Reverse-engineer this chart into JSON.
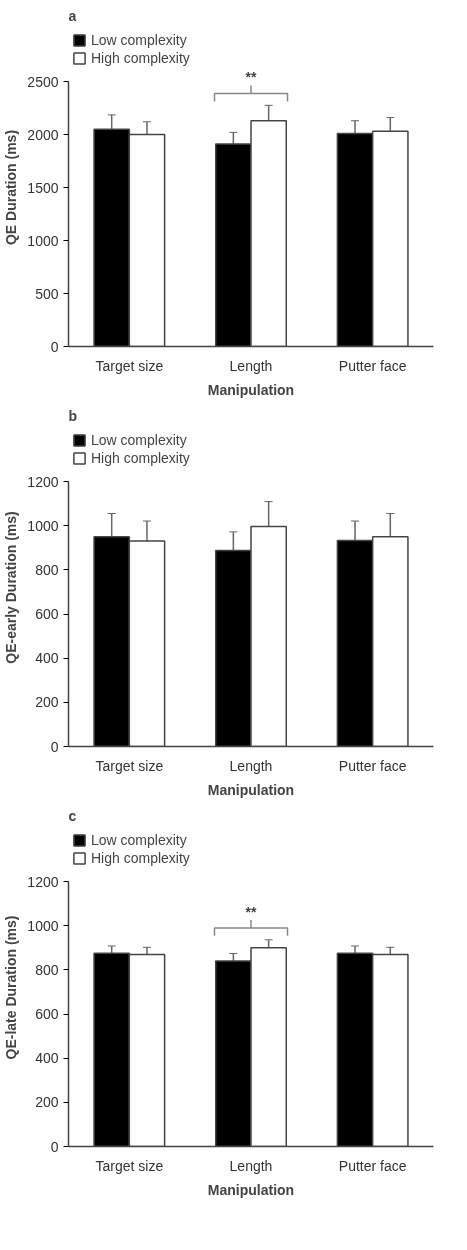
{
  "chart_data": [
    {
      "type": "bar",
      "title": "a",
      "xlabel": "Manipulation",
      "ylabel": "QE Duration (ms)",
      "categories": [
        "Target size",
        "Length",
        "Putter face"
      ],
      "ylim": [
        0,
        2500
      ],
      "yticks": [
        0,
        500,
        1000,
        1500,
        2000,
        2500
      ],
      "legend": "top left",
      "grid": false,
      "series": [
        {
          "name": "Low complexity",
          "color": "#000000",
          "values": [
            2050,
            1910,
            2010
          ],
          "errors": [
            135,
            110,
            120
          ]
        },
        {
          "name": "High complexity",
          "color": "#ffffff",
          "values": [
            2000,
            2130,
            2030
          ],
          "errors": [
            120,
            145,
            130
          ]
        }
      ],
      "annotations": [
        "**"
      ]
    },
    {
      "type": "bar",
      "title": "b",
      "xlabel": "Manipulation",
      "ylabel": "QE-early Duration (ms)",
      "categories": [
        "Target size",
        "Length",
        "Putter face"
      ],
      "ylim": [
        0,
        1200
      ],
      "yticks": [
        0,
        200,
        400,
        600,
        800,
        1000,
        1200
      ],
      "legend": "top left",
      "grid": false,
      "series": [
        {
          "name": "Low complexity",
          "color": "#000000",
          "values": [
            950,
            887,
            933
          ],
          "errors": [
            105,
            85,
            88
          ]
        },
        {
          "name": "High complexity",
          "color": "#ffffff",
          "values": [
            931,
            996,
            950
          ],
          "errors": [
            90,
            113,
            105
          ]
        }
      ]
    },
    {
      "type": "bar",
      "title": "c",
      "xlabel": "Manipulation",
      "ylabel": "QE-late Duration (ms)",
      "categories": [
        "Target size",
        "Length",
        "Putter face"
      ],
      "ylim": [
        0,
        1200
      ],
      "yticks": [
        0,
        200,
        400,
        600,
        800,
        1000,
        1200
      ],
      "legend": "top left",
      "grid": false,
      "series": [
        {
          "name": "Low complexity",
          "color": "#000000",
          "values": [
            875,
            840,
            875
          ],
          "errors": [
            33,
            34,
            33
          ]
        },
        {
          "name": "High complexity",
          "color": "#ffffff",
          "values": [
            869,
            900,
            869
          ],
          "errors": [
            33,
            36,
            33
          ]
        }
      ],
      "annotations": [
        "**"
      ]
    }
  ]
}
